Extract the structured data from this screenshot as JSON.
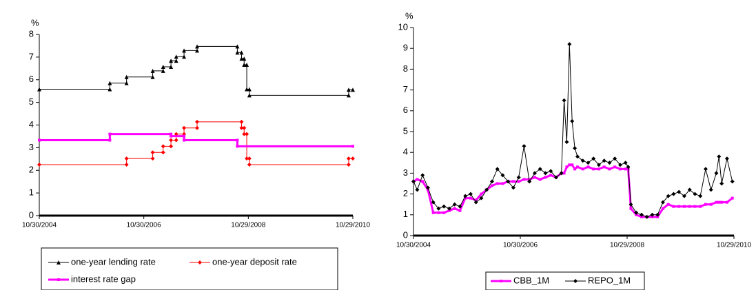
{
  "chart_data": [
    {
      "type": "line",
      "ylabel": "%",
      "xlim": [
        2004.83,
        2010.83
      ],
      "xticks": [
        {
          "value": 2004.83,
          "label": "10/30/2004"
        },
        {
          "value": 2006.83,
          "label": "10/30/2006"
        },
        {
          "value": 2008.83,
          "label": "10/29/2008"
        },
        {
          "value": 2010.83,
          "label": "10/29/2010"
        }
      ],
      "ylim": [
        0,
        8
      ],
      "yticks": [
        0,
        1,
        2,
        3,
        4,
        5,
        6,
        7,
        8
      ],
      "series": [
        {
          "name": "one-year lending rate",
          "color": "#000000",
          "marker": "triangle",
          "x": [
            2004.83,
            2006.18,
            2006.18,
            2006.5,
            2006.5,
            2007.0,
            2007.0,
            2007.2,
            2007.2,
            2007.35,
            2007.35,
            2007.45,
            2007.45,
            2007.6,
            2007.6,
            2007.85,
            2007.85,
            2008.62,
            2008.62,
            2008.7,
            2008.7,
            2008.75,
            2008.75,
            2008.8,
            2008.8,
            2008.85,
            2008.85,
            2010.75,
            2010.75,
            2010.83
          ],
          "values": [
            5.58,
            5.58,
            5.85,
            5.85,
            6.12,
            6.12,
            6.39,
            6.39,
            6.57,
            6.57,
            6.84,
            6.84,
            7.02,
            7.02,
            7.29,
            7.29,
            7.47,
            7.47,
            7.2,
            7.2,
            6.93,
            6.93,
            6.66,
            6.66,
            5.58,
            5.58,
            5.31,
            5.31,
            5.56,
            5.56
          ]
        },
        {
          "name": "one-year deposit rate",
          "color": "#ff0000",
          "marker": "diamond",
          "x": [
            2004.83,
            2006.5,
            2006.5,
            2007.0,
            2007.0,
            2007.2,
            2007.2,
            2007.35,
            2007.35,
            2007.45,
            2007.45,
            2007.6,
            2007.6,
            2007.85,
            2007.85,
            2008.7,
            2008.7,
            2008.75,
            2008.75,
            2008.8,
            2008.8,
            2008.85,
            2008.85,
            2010.75,
            2010.75,
            2010.83
          ],
          "values": [
            2.25,
            2.25,
            2.52,
            2.52,
            2.79,
            2.79,
            3.06,
            3.06,
            3.33,
            3.33,
            3.6,
            3.6,
            3.87,
            3.87,
            4.14,
            4.14,
            3.87,
            3.87,
            3.6,
            3.6,
            2.52,
            2.52,
            2.25,
            2.25,
            2.52,
            2.52
          ]
        },
        {
          "name": "interest rate gap",
          "color": "#ff00ff",
          "marker": "square",
          "x": [
            2004.83,
            2006.18,
            2006.18,
            2007.35,
            2007.35,
            2007.6,
            2007.6,
            2008.62,
            2008.62,
            2010.83
          ],
          "values": [
            3.33,
            3.33,
            3.6,
            3.6,
            3.51,
            3.51,
            3.33,
            3.33,
            3.06,
            3.06
          ]
        }
      ]
    },
    {
      "type": "line",
      "ylabel": "%",
      "xlim": [
        2004.83,
        2010.83
      ],
      "xticks": [
        {
          "value": 2004.83,
          "label": "10/30/2004"
        },
        {
          "value": 2006.83,
          "label": "10/30/2006"
        },
        {
          "value": 2008.83,
          "label": "10/29/2008"
        },
        {
          "value": 2010.83,
          "label": "10/29/2010"
        }
      ],
      "ylim": [
        0,
        10
      ],
      "yticks": [
        0,
        1,
        2,
        3,
        4,
        5,
        6,
        7,
        8,
        9,
        10
      ],
      "x": [
        2004.83,
        2004.9,
        2005.0,
        2005.1,
        2005.2,
        2005.3,
        2005.4,
        2005.5,
        2005.6,
        2005.7,
        2005.8,
        2005.9,
        2006.0,
        2006.1,
        2006.2,
        2006.3,
        2006.4,
        2006.5,
        2006.6,
        2006.7,
        2006.8,
        2006.9,
        2007.0,
        2007.1,
        2007.2,
        2007.3,
        2007.4,
        2007.5,
        2007.6,
        2007.65,
        2007.7,
        2007.75,
        2007.8,
        2007.85,
        2007.9,
        2008.0,
        2008.1,
        2008.2,
        2008.3,
        2008.4,
        2008.5,
        2008.6,
        2008.7,
        2008.8,
        2008.85,
        2008.9,
        2009.0,
        2009.1,
        2009.2,
        2009.3,
        2009.4,
        2009.5,
        2009.6,
        2009.7,
        2009.8,
        2009.9,
        2010.0,
        2010.1,
        2010.2,
        2010.3,
        2010.4,
        2010.5,
        2010.55,
        2010.6,
        2010.7,
        2010.8
      ],
      "series": [
        {
          "name": "CBB_1M",
          "color": "#ff00ff",
          "marker": "square",
          "values": [
            2.6,
            2.7,
            2.6,
            2.2,
            1.1,
            1.1,
            1.1,
            1.2,
            1.3,
            1.2,
            1.8,
            1.8,
            1.7,
            2.0,
            2.2,
            2.4,
            2.5,
            2.5,
            2.6,
            2.6,
            2.6,
            2.7,
            2.7,
            2.8,
            2.7,
            2.8,
            2.9,
            2.8,
            3.0,
            3.0,
            3.3,
            3.4,
            3.4,
            3.2,
            3.3,
            3.2,
            3.3,
            3.2,
            3.2,
            3.3,
            3.2,
            3.3,
            3.2,
            3.2,
            3.2,
            1.3,
            1.0,
            0.9,
            0.9,
            0.9,
            0.9,
            1.3,
            1.5,
            1.4,
            1.4,
            1.4,
            1.4,
            1.4,
            1.4,
            1.5,
            1.5,
            1.6,
            1.6,
            1.6,
            1.6,
            1.8
          ]
        },
        {
          "name": "REPO_1M",
          "color": "#000000",
          "marker": "diamond",
          "values": [
            2.6,
            2.2,
            2.9,
            2.3,
            1.6,
            1.3,
            1.4,
            1.3,
            1.5,
            1.4,
            1.9,
            2.0,
            1.6,
            1.8,
            2.2,
            2.6,
            3.2,
            2.9,
            2.6,
            2.3,
            2.8,
            4.3,
            2.6,
            3.0,
            3.2,
            3.0,
            3.1,
            2.8,
            3.0,
            6.5,
            4.5,
            9.2,
            5.5,
            4.2,
            3.8,
            3.6,
            3.5,
            3.7,
            3.4,
            3.6,
            3.5,
            3.7,
            3.4,
            3.5,
            3.3,
            1.5,
            1.1,
            1.0,
            0.9,
            1.0,
            1.0,
            1.6,
            1.9,
            2.0,
            2.1,
            1.9,
            2.2,
            2.0,
            1.9,
            3.2,
            2.2,
            3.0,
            3.8,
            2.5,
            3.7,
            2.6
          ]
        }
      ]
    }
  ]
}
